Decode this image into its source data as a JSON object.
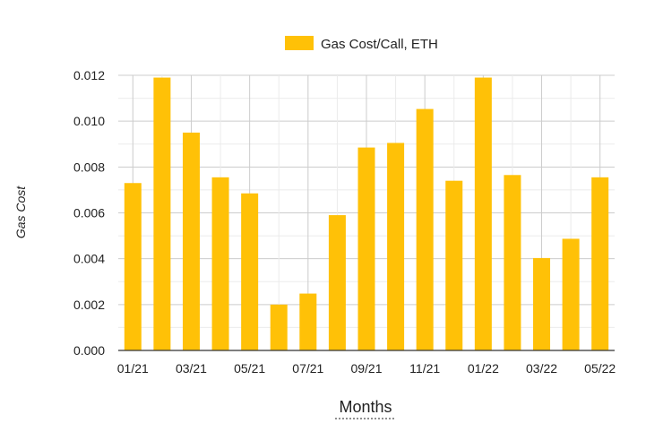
{
  "chart_data": {
    "type": "bar",
    "categories": [
      "01/21",
      "02/21",
      "03/21",
      "04/21",
      "05/21",
      "06/21",
      "07/21",
      "08/21",
      "09/21",
      "10/21",
      "11/21",
      "12/21",
      "01/22",
      "02/22",
      "03/22",
      "04/22",
      "05/22"
    ],
    "tick_labels_shown": [
      "01/21",
      "03/21",
      "05/21",
      "07/21",
      "09/21",
      "11/21",
      "01/22",
      "03/22",
      "05/22"
    ],
    "series": [
      {
        "name": "Gas Cost/Call, ETH",
        "color": "#FFC107",
        "values": [
          0.0073,
          0.0119,
          0.0095,
          0.00755,
          0.00685,
          0.002,
          0.00248,
          0.0059,
          0.00885,
          0.00905,
          0.01053,
          0.0074,
          0.0119,
          0.00765,
          0.00403,
          0.00487,
          0.00755
        ]
      }
    ],
    "title": "",
    "xlabel": "Months",
    "ylabel": "Gas Cost",
    "ylim": [
      0,
      0.012
    ],
    "yticks": [
      0.0,
      0.002,
      0.004,
      0.006,
      0.008,
      0.01,
      0.012
    ],
    "ytick_labels": [
      "0.000",
      "0.002",
      "0.004",
      "0.006",
      "0.008",
      "0.010",
      "0.012"
    ],
    "grid": true,
    "legend_position": "top-center"
  }
}
